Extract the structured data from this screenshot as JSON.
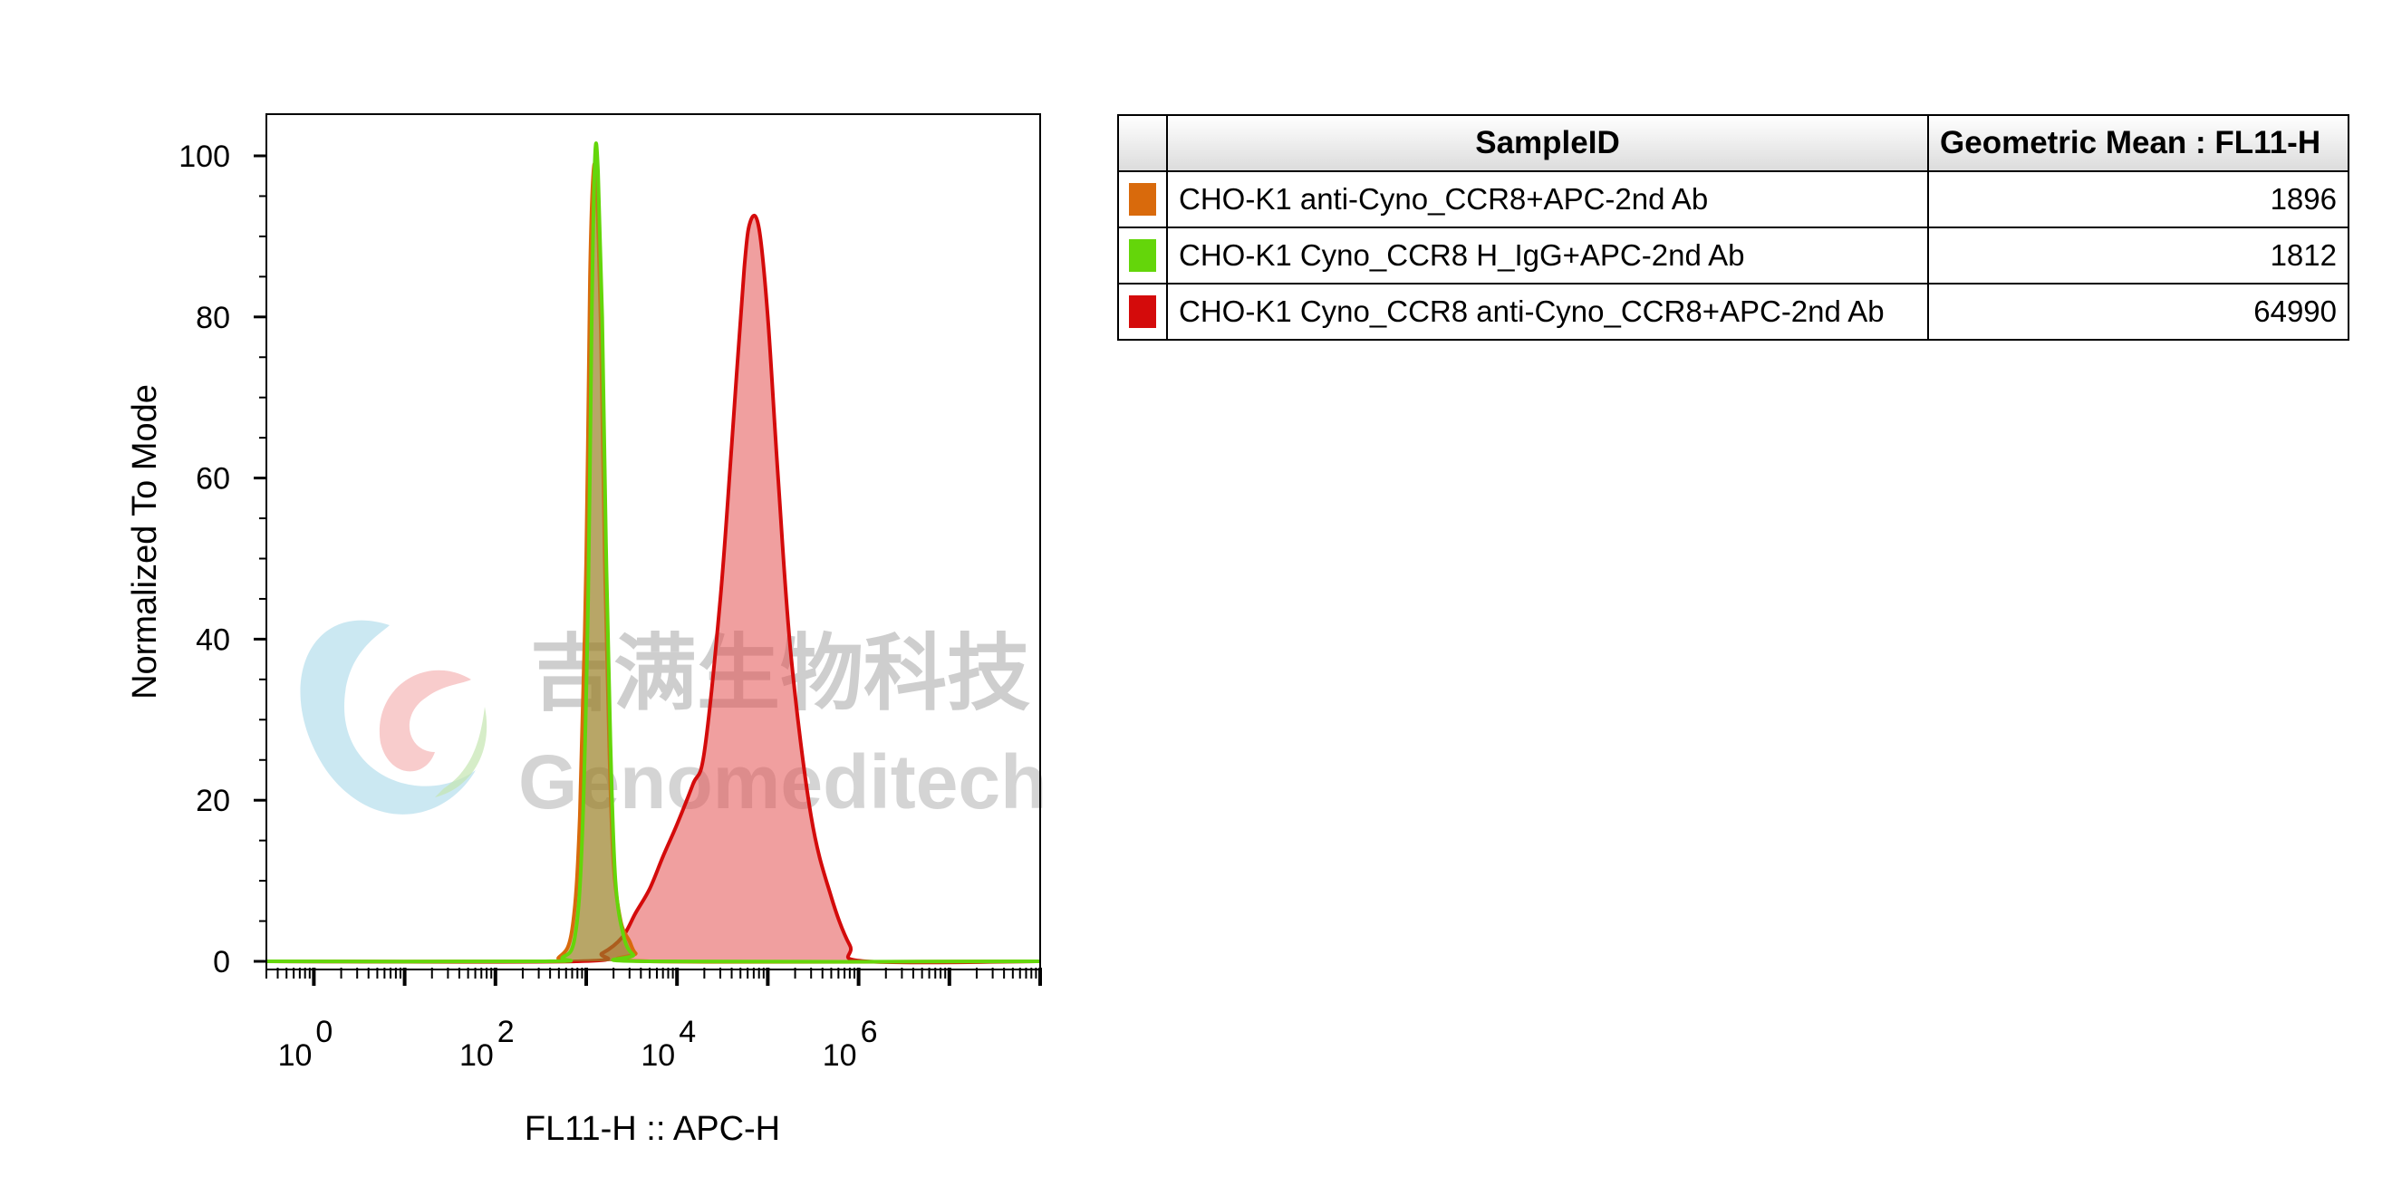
{
  "chart_data": {
    "type": "area",
    "title": "",
    "xlabel": "FL11-H :: APC-H",
    "ylabel": "Normalized To Mode",
    "x_scale": "log",
    "xlim": [
      0.3,
      100000000
    ],
    "ylim": [
      0,
      100
    ],
    "y_ticks": [
      "0",
      "20",
      "40",
      "60",
      "80",
      "100"
    ],
    "x_ticks": [
      {
        "base": "10",
        "exp": "0",
        "value": 1
      },
      {
        "base": "10",
        "exp": "2",
        "value": 100
      },
      {
        "base": "10",
        "exp": "4",
        "value": 10000
      },
      {
        "base": "10",
        "exp": "6",
        "value": 1000000
      }
    ],
    "grid": false,
    "legend": "table-right",
    "series": [
      {
        "name": "CHO-K1 anti-Cyno_CCR8+APC-2nd Ab",
        "color": "#d96a0c",
        "fill": "rgba(160,110,20,0.55)",
        "x": [
          0.3,
          300,
          500,
          700,
          850,
          1000,
          1100,
          1200,
          1300,
          1450,
          1600,
          1800,
          2000,
          2400,
          3000,
          3500,
          5000,
          100000000
        ],
        "y": [
          0,
          0,
          0.5,
          4,
          18,
          50,
          85,
          98,
          96,
          78,
          50,
          26,
          12,
          5,
          2.5,
          1,
          0,
          0
        ]
      },
      {
        "name": "CHO-K1 Cyno_CCR8 H_IgG+APC-2nd Ab",
        "color": "#64d60a",
        "fill": "rgba(150,150,60,0.35)",
        "x": [
          0.3,
          350,
          550,
          750,
          900,
          1050,
          1150,
          1250,
          1350,
          1500,
          1650,
          1850,
          2100,
          2600,
          3300,
          4500,
          100000000
        ],
        "y": [
          0,
          0,
          0.5,
          3,
          15,
          45,
          80,
          100,
          98,
          80,
          52,
          27,
          10,
          3,
          0.8,
          0,
          0
        ]
      },
      {
        "name": "CHO-K1 Cyno_CCR8 anti-Cyno_CCR8+APC-2nd Ab",
        "color": "#d40b0b",
        "fill": "rgba(228,80,80,0.55)",
        "x": [
          0.3,
          800,
          1500,
          2500,
          3500,
          5000,
          7000,
          10000,
          15000,
          20000,
          30000,
          40000,
          55000,
          65000,
          80000,
          100000,
          130000,
          180000,
          300000,
          500000,
          800000,
          1200000,
          100000000
        ],
        "y": [
          0,
          0,
          1,
          3,
          6,
          9,
          13,
          17,
          22,
          26,
          45,
          64,
          86,
          92,
          91,
          80,
          60,
          38,
          18,
          8,
          2,
          0,
          0
        ]
      }
    ]
  },
  "legend_table": {
    "headers": {
      "sample": "SampleID",
      "value": "Geometric Mean : FL11-H"
    },
    "rows": [
      {
        "sample": "CHO-K1 anti-Cyno_CCR8+APC-2nd Ab",
        "value": "1896",
        "color": "#d96a0c"
      },
      {
        "sample": "CHO-K1 Cyno_CCR8 H_IgG+APC-2nd Ab",
        "value": "1812",
        "color": "#64d60a"
      },
      {
        "sample": "CHO-K1 Cyno_CCR8 anti-Cyno_CCR8+APC-2nd Ab",
        "value": "64990",
        "color": "#d40b0b"
      }
    ]
  },
  "watermark": {
    "text_cn": "吉满生物科技",
    "text_en": "Genomeditech",
    "logo": "genomeditech-logo-icon"
  }
}
